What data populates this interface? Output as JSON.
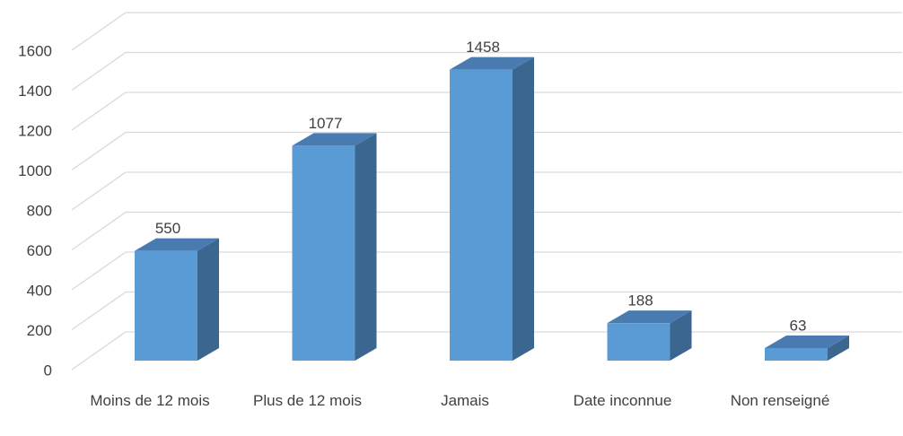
{
  "chart_data": {
    "type": "bar3d",
    "categories": [
      "Moins de 12 mois",
      "Plus de 12 mois",
      "Jamais",
      "Date inconnue",
      "Non renseigné"
    ],
    "values": [
      550,
      1077,
      1458,
      188,
      63
    ],
    "color": "#5b9bd5",
    "top_color": "#4a7bb0",
    "side_color": "#3a6690",
    "ylim": [
      0,
      1600
    ],
    "yticks": [
      0,
      200,
      400,
      600,
      800,
      1000,
      1200,
      1400,
      1600
    ],
    "grid": true
  }
}
